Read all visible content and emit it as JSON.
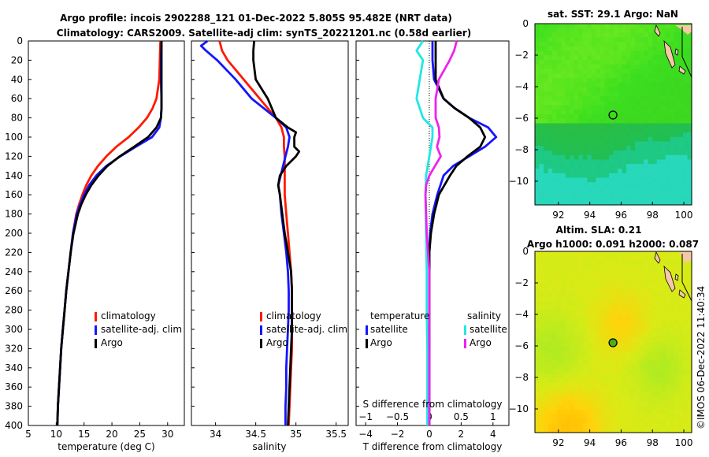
{
  "header": {
    "title_line1": "Argo profile: incois 2902288_121 01-Dec-2022 5.805S 95.482E (NRT data)",
    "title_line2": "Climatology: CARS2009. Satellite-adj clim: synTS_20221201.nc (0.58d earlier)"
  },
  "colors": {
    "climatology": "#ff1a00",
    "satellite": "#1515ff",
    "argo": "#000000",
    "sat_s": "#22e6e6",
    "argo_s": "#ee22ee"
  },
  "chart_data": [
    {
      "type": "line",
      "title": "",
      "xlabel": "temperature (deg C)",
      "ylabel": "depth",
      "xlim": [
        5,
        33
      ],
      "ylim": [
        400,
        0
      ],
      "x_ticks": [
        5,
        10,
        15,
        20,
        25,
        30
      ],
      "y_ticks": [
        0,
        20,
        40,
        60,
        80,
        100,
        120,
        140,
        160,
        180,
        200,
        220,
        240,
        260,
        280,
        300,
        320,
        340,
        360,
        380,
        400
      ],
      "legend": [
        "climatology",
        "satellite-adj. clim",
        "Argo"
      ],
      "series": [
        {
          "name": "climatology",
          "depth": [
            0,
            20,
            40,
            60,
            70,
            80,
            90,
            100,
            110,
            120,
            130,
            140,
            150,
            160,
            170,
            180,
            200,
            220,
            240,
            260,
            280,
            300,
            320,
            340,
            360,
            380,
            400
          ],
          "values": [
            28.7,
            28.6,
            28.5,
            28.0,
            27.3,
            26.3,
            24.8,
            23.0,
            20.8,
            19.0,
            17.5,
            16.3,
            15.4,
            14.7,
            14.1,
            13.6,
            13.0,
            12.6,
            12.2,
            11.8,
            11.5,
            11.2,
            10.9,
            10.7,
            10.5,
            10.3,
            10.2
          ]
        },
        {
          "name": "satellite-adj. clim",
          "depth": [
            0,
            20,
            40,
            60,
            70,
            80,
            90,
            100,
            110,
            120,
            130,
            140,
            150,
            160,
            170,
            180,
            200,
            220,
            240,
            260,
            280,
            300,
            320,
            340,
            360,
            380,
            400
          ],
          "values": [
            28.9,
            28.8,
            28.8,
            28.9,
            28.9,
            28.8,
            28.5,
            27.2,
            24.3,
            21.5,
            19.0,
            17.2,
            15.9,
            15.0,
            14.3,
            13.7,
            13.0,
            12.6,
            12.2,
            11.8,
            11.5,
            11.2,
            10.9,
            10.7,
            10.5,
            10.3,
            10.2
          ]
        },
        {
          "name": "Argo",
          "depth": [
            0,
            20,
            40,
            60,
            70,
            80,
            90,
            100,
            110,
            120,
            130,
            140,
            150,
            160,
            170,
            180,
            200,
            220,
            240,
            260,
            280,
            300,
            320,
            340,
            360,
            380,
            400
          ],
          "values": [
            28.9,
            28.9,
            28.9,
            28.9,
            28.9,
            28.8,
            28.0,
            26.5,
            24.0,
            21.4,
            19.2,
            17.6,
            16.3,
            15.3,
            14.5,
            13.9,
            13.1,
            12.6,
            12.2,
            11.8,
            11.5,
            11.2,
            10.9,
            10.7,
            10.5,
            10.3,
            10.2
          ]
        }
      ]
    },
    {
      "type": "line",
      "title": "",
      "xlabel": "salinity",
      "ylabel": "depth",
      "xlim": [
        33.7,
        35.65
      ],
      "ylim": [
        400,
        0
      ],
      "x_ticks": [
        34,
        34.5,
        35,
        35.5
      ],
      "legend": [
        "climatology",
        "satellite-adj. clim",
        "Argo"
      ],
      "series": [
        {
          "name": "climatology",
          "depth": [
            0,
            10,
            20,
            40,
            60,
            80,
            90,
            100,
            110,
            120,
            140,
            160,
            180,
            200,
            220,
            240,
            260,
            280,
            300,
            320,
            340,
            360,
            380,
            400
          ],
          "values": [
            34.05,
            34.08,
            34.15,
            34.35,
            34.55,
            34.75,
            34.82,
            34.85,
            34.85,
            34.86,
            34.86,
            34.86,
            34.88,
            34.9,
            34.92,
            34.94,
            34.95,
            34.95,
            34.95,
            34.95,
            34.94,
            34.93,
            34.92,
            34.91
          ]
        },
        {
          "name": "satellite-adj. clim",
          "depth": [
            0,
            5,
            10,
            20,
            40,
            60,
            80,
            90,
            100,
            110,
            120,
            130,
            140,
            150,
            160,
            180,
            200,
            220,
            240,
            260,
            280,
            300,
            320,
            340,
            360,
            380,
            400
          ],
          "values": [
            33.9,
            33.82,
            33.88,
            34.02,
            34.25,
            34.45,
            34.75,
            34.88,
            34.92,
            34.9,
            34.87,
            34.84,
            34.81,
            34.78,
            34.8,
            34.82,
            34.85,
            34.88,
            34.9,
            34.91,
            34.91,
            34.9,
            34.89,
            34.88,
            34.88,
            34.87,
            34.87
          ]
        },
        {
          "name": "Argo",
          "depth": [
            0,
            10,
            20,
            40,
            60,
            70,
            80,
            90,
            95,
            100,
            110,
            115,
            120,
            130,
            140,
            150,
            160,
            180,
            200,
            220,
            240,
            260,
            280,
            300,
            320,
            340,
            360,
            380,
            400
          ],
          "values": [
            34.48,
            34.47,
            34.47,
            34.5,
            34.65,
            34.7,
            34.75,
            34.9,
            35.0,
            34.98,
            34.98,
            35.04,
            35.0,
            34.88,
            34.8,
            34.78,
            34.8,
            34.83,
            34.86,
            34.9,
            34.94,
            34.95,
            34.95,
            34.95,
            34.94,
            34.93,
            34.92,
            34.91,
            34.9
          ]
        }
      ]
    },
    {
      "type": "line",
      "title": "",
      "xlabel": "T difference from climatology",
      "xlabel_top": "S difference from climatology",
      "ylabel": "depth",
      "xlim": [
        -4.6,
        5.0
      ],
      "ylim": [
        400,
        0
      ],
      "x_ticks": [
        -4,
        -2,
        0,
        2,
        4
      ],
      "x_ticks_top": [
        -1,
        -0.5,
        0,
        0.5,
        1
      ],
      "legend_groups": {
        "temperature": [
          "satellite",
          "Argo"
        ],
        "salinity": [
          "satellite",
          "Argo"
        ]
      },
      "series": [
        {
          "name": "temperature satellite",
          "depth": [
            0,
            20,
            40,
            60,
            70,
            80,
            90,
            100,
            110,
            120,
            130,
            140,
            160,
            180,
            200,
            220,
            240,
            260,
            300,
            340,
            400
          ],
          "values": [
            0.2,
            0.2,
            0.3,
            0.9,
            1.6,
            2.5,
            3.7,
            4.2,
            3.5,
            2.5,
            1.5,
            0.9,
            0.5,
            0.2,
            0.05,
            0,
            0,
            0,
            0,
            0,
            0
          ]
        },
        {
          "name": "temperature Argo",
          "depth": [
            0,
            20,
            40,
            60,
            70,
            80,
            90,
            100,
            110,
            120,
            130,
            140,
            160,
            180,
            200,
            220,
            240,
            260,
            300,
            340,
            400
          ],
          "values": [
            0.4,
            0.4,
            0.4,
            0.9,
            1.6,
            2.5,
            3.2,
            3.5,
            3.2,
            2.4,
            1.7,
            1.3,
            0.6,
            0.3,
            0.1,
            0,
            0,
            0,
            0,
            0,
            0
          ]
        },
        {
          "name": "salinity satellite",
          "depth": [
            0,
            10,
            20,
            40,
            60,
            80,
            90,
            100,
            120,
            140,
            160,
            200,
            240,
            280,
            320,
            360,
            400
          ],
          "values": [
            -0.1,
            -0.2,
            -0.1,
            -0.15,
            -0.2,
            -0.1,
            0.05,
            0.05,
            0.0,
            -0.05,
            -0.06,
            -0.05,
            -0.04,
            -0.04,
            -0.03,
            -0.03,
            -0.03
          ]
        },
        {
          "name": "salinity Argo",
          "depth": [
            0,
            10,
            20,
            40,
            60,
            80,
            90,
            100,
            110,
            120,
            140,
            150,
            160,
            200,
            240,
            280,
            320,
            360,
            400
          ],
          "values": [
            0.43,
            0.39,
            0.32,
            0.15,
            0.1,
            0.1,
            0.15,
            0.16,
            0.12,
            0.18,
            0.0,
            -0.05,
            -0.06,
            -0.04,
            0.0,
            0.0,
            0.0,
            0.0,
            0.0
          ]
        }
      ]
    },
    {
      "type": "heatmap",
      "title": "sat. SST: 29.1 Argo: NaN",
      "xlim": [
        90.5,
        100.5
      ],
      "ylim": [
        -11.5,
        0
      ],
      "x_ticks": [
        92,
        94,
        96,
        98,
        100
      ],
      "y_ticks": [
        0,
        -2,
        -4,
        -6,
        -8,
        -10
      ],
      "marker": {
        "lon": 95.48,
        "lat": -5.8
      }
    },
    {
      "type": "heatmap",
      "title": "Altim. SLA: 0.21",
      "subtitle": "Argo h1000: 0.091 h2000: 0.087",
      "xlim": [
        90.5,
        100.5
      ],
      "ylim": [
        -11.5,
        0
      ],
      "x_ticks": [
        92,
        94,
        96,
        98,
        100
      ],
      "y_ticks": [
        0,
        -2,
        -4,
        -6,
        -8,
        -10
      ],
      "marker": {
        "lon": 95.48,
        "lat": -5.8
      }
    }
  ],
  "legend_labels": {
    "climatology": "climatology",
    "satellite_adj": "satellite-adj. clim",
    "argo": "Argo",
    "temperature": "temperature",
    "salinity": "salinity",
    "satellite": "satellite"
  },
  "footer": {
    "copyright": "©IMOS 06-Dec-2022 11:40:34"
  }
}
